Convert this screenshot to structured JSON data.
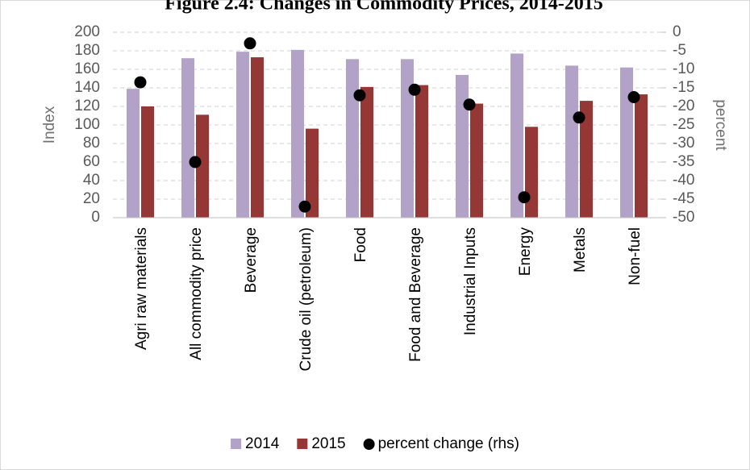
{
  "chart_data": {
    "type": "bar",
    "title": "Figure 2.4: Changes in Commodity Prices, 2014-2015",
    "ylabel": "Index",
    "y2label": "percent",
    "categories": [
      "Agri raw materials",
      "All commodity price",
      "Beverage",
      "Crude oil (petroleum)",
      "Food",
      "Food and Beverage",
      "Industrial Inputs",
      "Energy",
      "Metals",
      "Non-fuel"
    ],
    "series": [
      {
        "name": "2014",
        "color": "#b3a2c7",
        "values": [
          139,
          172,
          179,
          181,
          171,
          171,
          154,
          177,
          164,
          162
        ]
      },
      {
        "name": "2015",
        "color": "#953735",
        "values": [
          120,
          111,
          173,
          96,
          141,
          143,
          123,
          98,
          126,
          133
        ]
      },
      {
        "name": "percent change (rhs)",
        "color": "#000000",
        "type": "scatter",
        "axis": "y2",
        "values": [
          -13.5,
          -35,
          -3,
          -47,
          -17,
          -15.5,
          -19.5,
          -44.5,
          -23,
          -17.5
        ]
      }
    ],
    "ylim": [
      0,
      200
    ],
    "yticks": [
      0,
      20,
      40,
      60,
      80,
      100,
      120,
      140,
      160,
      180,
      200
    ],
    "y2lim": [
      -50,
      0
    ],
    "y2ticks": [
      -50,
      -45,
      -40,
      -35,
      -30,
      -25,
      -20,
      -15,
      -10,
      -5,
      0
    ],
    "grid": true,
    "legend": "bottom"
  }
}
